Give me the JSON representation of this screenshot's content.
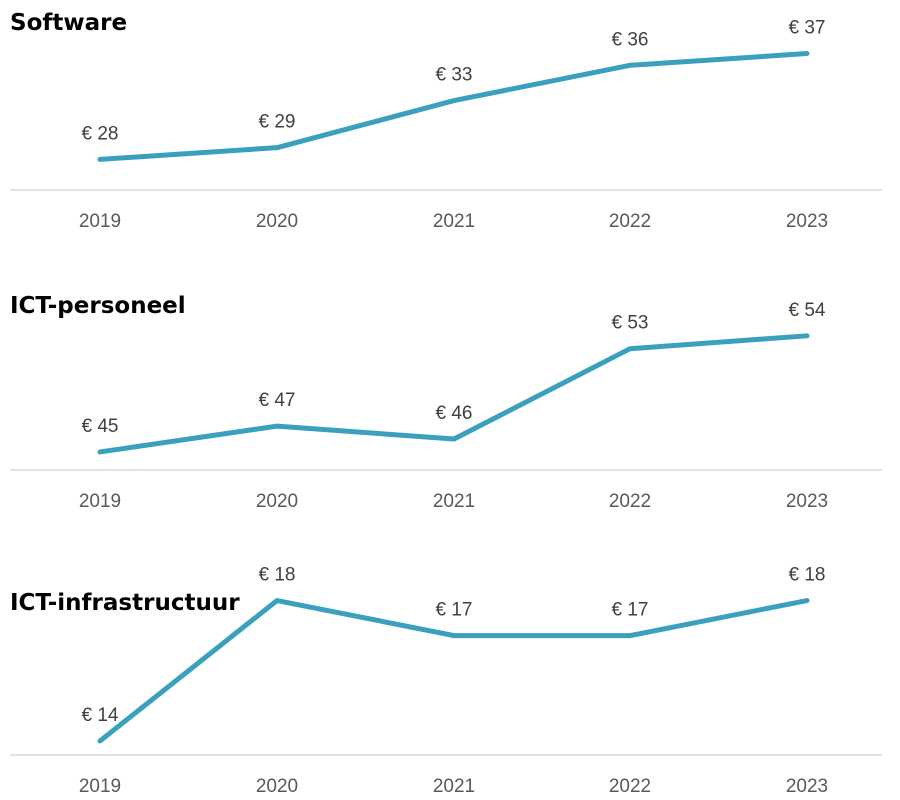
{
  "chart_data": [
    {
      "type": "line",
      "title": "Software",
      "categories": [
        "2019",
        "2020",
        "2021",
        "2022",
        "2023"
      ],
      "values": [
        28,
        29,
        33,
        36,
        37
      ],
      "data_labels": [
        "€ 28",
        "€ 29",
        "€ 33",
        "€ 36",
        "€ 37"
      ],
      "ylim": [
        25.4,
        39
      ],
      "grid": false,
      "line_color": "#3aa0bd"
    },
    {
      "type": "line",
      "title": "ICT-personeel",
      "categories": [
        "2019",
        "2020",
        "2021",
        "2022",
        "2023"
      ],
      "values": [
        45,
        47,
        46,
        53,
        54
      ],
      "data_labels": [
        "€ 45",
        "€ 47",
        "€ 46",
        "€ 53",
        "€ 54"
      ],
      "ylim": [
        43.6,
        56
      ],
      "grid": false,
      "line_color": "#3aa0bd"
    },
    {
      "type": "line",
      "title": "ICT-infrastructuur",
      "categories": [
        "2019",
        "2020",
        "2021",
        "2022",
        "2023"
      ],
      "values": [
        14,
        18,
        17,
        17,
        18
      ],
      "data_labels": [
        "€ 14",
        "€ 18",
        "€ 17",
        "€ 17",
        "€ 18"
      ],
      "ylim": [
        13.6,
        18.3
      ],
      "grid": false,
      "line_color": "#3aa0bd"
    }
  ]
}
